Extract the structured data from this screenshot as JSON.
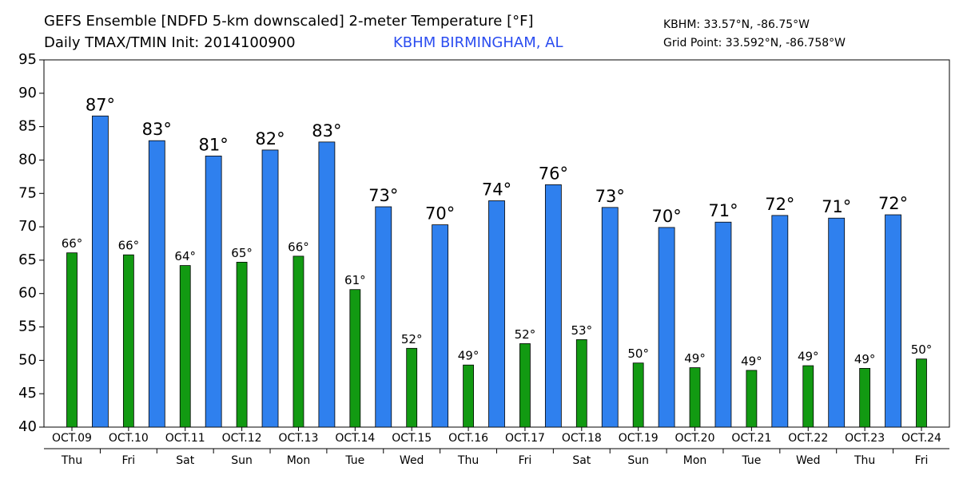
{
  "chart_data": {
    "type": "bar",
    "title": "GEFS Ensemble [NDFD 5-km downscaled] 2-meter Temperature [°F]",
    "subtitle": "Daily TMAX/TMIN Init: 2014100900",
    "station": "KBHM BIRMINGHAM, AL",
    "station_coords": "KBHM: 33.57°N, -86.75°W",
    "grid_point": "Grid Point: 33.592°N, -86.758°W",
    "categories": [
      "OCT.09",
      "OCT.10",
      "OCT.11",
      "OCT.12",
      "OCT.13",
      "OCT.14",
      "OCT.15",
      "OCT.16",
      "OCT.17",
      "OCT.18",
      "OCT.19",
      "OCT.20",
      "OCT.21",
      "OCT.22",
      "OCT.23",
      "OCT.24"
    ],
    "weekdays": [
      "Thu",
      "Fri",
      "Sat",
      "Sun",
      "Mon",
      "Tue",
      "Wed",
      "Thu",
      "Fri",
      "Sat",
      "Sun",
      "Mon",
      "Tue",
      "Wed",
      "Thu",
      "Fri"
    ],
    "series": [
      {
        "color": "#129a12",
        "values": [
          66.1,
          65.8,
          64.2,
          64.7,
          65.6,
          60.6,
          51.8,
          49.3,
          52.5,
          53.1,
          49.6,
          48.9,
          48.5,
          49.2,
          48.8,
          50.2
        ],
        "value_labels": [
          "66°",
          "66°",
          "64°",
          "65°",
          "66°",
          "61°",
          "52°",
          "49°",
          "52°",
          "53°",
          "50°",
          "49°",
          "49°",
          "49°",
          "49°",
          "50°"
        ]
      },
      {
        "color": "#2f80ee",
        "values": [
          86.6,
          82.9,
          80.6,
          81.5,
          82.7,
          73.0,
          70.3,
          73.9,
          76.3,
          72.9,
          69.9,
          70.7,
          71.7,
          71.3,
          71.8,
          null
        ],
        "value_labels": [
          "87°",
          "83°",
          "81°",
          "82°",
          "83°",
          "73°",
          "70°",
          "74°",
          "76°",
          "73°",
          "70°",
          "71°",
          "72°",
          "71°",
          "72°",
          null
        ]
      }
    ],
    "ylim": [
      40,
      95
    ],
    "yticks": [
      40,
      45,
      50,
      55,
      60,
      65,
      70,
      75,
      80,
      85,
      90,
      95
    ],
    "grid": false
  }
}
